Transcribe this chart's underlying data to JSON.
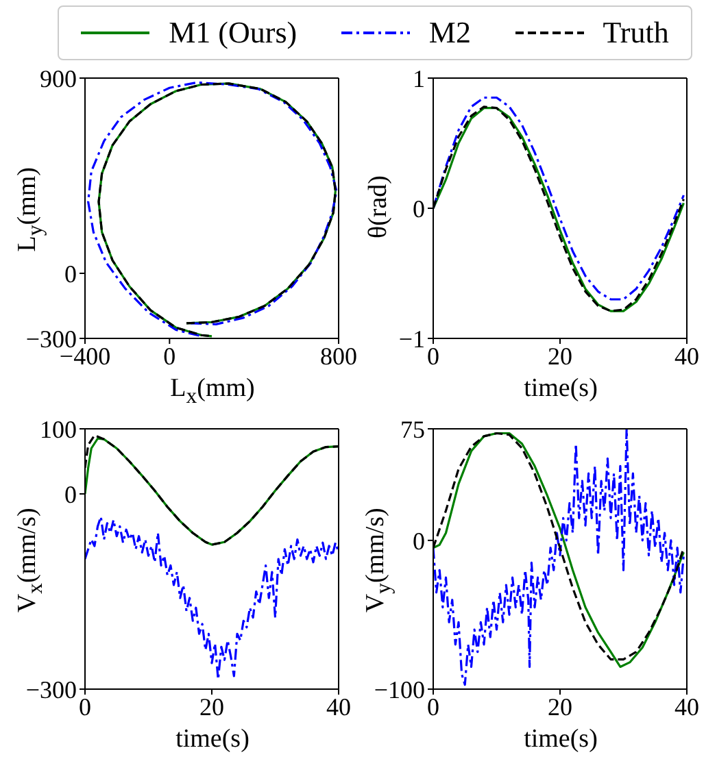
{
  "chart_data": [
    {
      "type": "line",
      "xlabel": "L$_{x}$(mm)",
      "ylabel": "L$_{y}$(mm)",
      "xlim": [
        -400,
        800
      ],
      "xticks": [
        {
          "value": -400,
          "label": "−400"
        },
        0,
        800
      ],
      "ylim": [
        -300,
        900
      ],
      "yticks": [
        {
          "value": -300,
          "label": "−300"
        },
        0,
        900
      ],
      "legend": "top",
      "series": [
        {
          "name": "M1 (Ours)",
          "color": "#008000",
          "line_style": "solid",
          "x": [
            80,
            200,
            330,
            450,
            560,
            660,
            730,
            775,
            785,
            770,
            720,
            650,
            550,
            430,
            280,
            150,
            30,
            -90,
            -190,
            -270,
            -320,
            -335,
            -320,
            -270,
            -190,
            -90,
            30,
            150,
            200
          ],
          "values": [
            -230,
            -225,
            -200,
            -150,
            -70,
            40,
            160,
            280,
            380,
            490,
            600,
            700,
            790,
            850,
            875,
            870,
            840,
            780,
            700,
            590,
            460,
            330,
            190,
            60,
            -60,
            -170,
            -250,
            -285,
            -290
          ]
        },
        {
          "name": "M2",
          "color": "#0000ff",
          "line_style": "dashdot",
          "x": [
            100,
            220,
            350,
            470,
            580,
            670,
            730,
            770,
            790,
            760,
            710,
            630,
            540,
            420,
            280,
            130,
            0,
            -120,
            -230,
            -310,
            -370,
            -385,
            -360,
            -300,
            -210,
            -100,
            30,
            150
          ],
          "values": [
            -230,
            -235,
            -205,
            -150,
            -60,
            50,
            170,
            280,
            380,
            490,
            600,
            710,
            790,
            850,
            870,
            880,
            855,
            800,
            720,
            610,
            470,
            330,
            190,
            50,
            -70,
            -180,
            -260,
            -290
          ]
        },
        {
          "name": "Truth",
          "color": "#000000",
          "line_style": "dashed",
          "x": [
            80,
            200,
            330,
            450,
            560,
            660,
            730,
            775,
            785,
            770,
            720,
            650,
            550,
            430,
            280,
            150,
            30,
            -90,
            -190,
            -270,
            -320,
            -335,
            -320,
            -270,
            -190,
            -90,
            30,
            150,
            200
          ],
          "values": [
            -230,
            -225,
            -200,
            -150,
            -70,
            40,
            160,
            280,
            380,
            490,
            600,
            700,
            790,
            850,
            875,
            870,
            840,
            780,
            700,
            590,
            460,
            330,
            190,
            60,
            -60,
            -170,
            -250,
            -285,
            -290
          ]
        }
      ]
    },
    {
      "type": "line",
      "xlabel": "time(s)",
      "ylabel": "θ(rad)",
      "xlim": [
        0,
        40
      ],
      "xticks": [
        0,
        20,
        40
      ],
      "ylim": [
        -1,
        1
      ],
      "yticks": [
        {
          "value": -1,
          "label": "−1"
        },
        0,
        1
      ],
      "series": [
        {
          "color": "#008000",
          "line_style": "solid",
          "x": [
            0,
            2,
            4,
            6,
            8,
            10,
            12,
            14,
            16,
            18,
            20,
            22,
            24,
            26,
            28,
            30,
            32,
            34,
            36,
            38,
            39.5
          ],
          "values": [
            0,
            0.22,
            0.5,
            0.69,
            0.77,
            0.77,
            0.7,
            0.55,
            0.34,
            0.1,
            -0.17,
            -0.42,
            -0.62,
            -0.74,
            -0.79,
            -0.79,
            -0.72,
            -0.58,
            -0.39,
            -0.15,
            0.04
          ]
        },
        {
          "color": "#0000ff",
          "line_style": "dashdot",
          "x": [
            0,
            2,
            4,
            6,
            8,
            10,
            12,
            14,
            16,
            18,
            20,
            22,
            24,
            26,
            28,
            30,
            32,
            34,
            36,
            38,
            39.5
          ],
          "values": [
            0,
            0.32,
            0.6,
            0.78,
            0.85,
            0.85,
            0.78,
            0.64,
            0.43,
            0.18,
            -0.08,
            -0.33,
            -0.52,
            -0.64,
            -0.7,
            -0.7,
            -0.62,
            -0.48,
            -0.3,
            -0.08,
            0.1
          ]
        },
        {
          "color": "#000000",
          "line_style": "dashed",
          "x": [
            0,
            2,
            4,
            6,
            8,
            10,
            12,
            14,
            16,
            18,
            20,
            22,
            24,
            26,
            28,
            30,
            32,
            34,
            36,
            38,
            39.5
          ],
          "values": [
            0,
            0.3,
            0.55,
            0.71,
            0.78,
            0.77,
            0.68,
            0.52,
            0.3,
            0.05,
            -0.22,
            -0.46,
            -0.64,
            -0.75,
            -0.79,
            -0.78,
            -0.7,
            -0.55,
            -0.35,
            -0.12,
            0.07
          ]
        }
      ]
    },
    {
      "type": "line",
      "xlabel": "time(s)",
      "ylabel": "V$_{x}$(mm/s)",
      "xlim": [
        0,
        40
      ],
      "xticks": [
        0,
        20,
        40
      ],
      "ylim": [
        -300,
        100
      ],
      "yticks": [
        {
          "value": -300,
          "label": "−300"
        },
        0,
        100
      ],
      "series": [
        {
          "color": "#008000",
          "line_style": "solid",
          "x": [
            0,
            0.5,
            1,
            2,
            3,
            5,
            7,
            9,
            11,
            13,
            15,
            17,
            19,
            20,
            22,
            24,
            26,
            28,
            30,
            32,
            34,
            36,
            38,
            40
          ],
          "values": [
            0,
            40,
            70,
            85,
            84,
            70,
            50,
            28,
            5,
            -20,
            -42,
            -60,
            -74,
            -78,
            -74,
            -60,
            -42,
            -20,
            5,
            28,
            50,
            65,
            72,
            73
          ]
        },
        {
          "color": "#0000ff",
          "line_style": "dashdot",
          "x": [
            0,
            0.5,
            1,
            1.5,
            2,
            2.5,
            3,
            3.5,
            4,
            4.5,
            5,
            5.5,
            6,
            6.5,
            7,
            7.5,
            8,
            8.5,
            9,
            9.5,
            10,
            10.5,
            11,
            11.5,
            12,
            12.5,
            13,
            13.5,
            14,
            14.5,
            15,
            15.5,
            16,
            16.5,
            17,
            17.5,
            18,
            18.5,
            19,
            19.5,
            20,
            20.5,
            21,
            21.5,
            22,
            22.5,
            23,
            23.5,
            24,
            24.5,
            25,
            25.5,
            26,
            26.5,
            27,
            27.5,
            28,
            28.5,
            29,
            29.5,
            30,
            30.5,
            31,
            31.5,
            32,
            32.5,
            33,
            33.5,
            34,
            34.5,
            35,
            35.5,
            36,
            36.5,
            37,
            37.5,
            38,
            38.5,
            39,
            39.5,
            40
          ],
          "values": [
            -100,
            -85,
            -70,
            -80,
            -50,
            -35,
            -70,
            -45,
            -60,
            -40,
            -65,
            -50,
            -75,
            -55,
            -70,
            -60,
            -85,
            -65,
            -90,
            -70,
            -95,
            -80,
            -105,
            -60,
            -110,
            -95,
            -125,
            -110,
            -140,
            -120,
            -160,
            -140,
            -180,
            -160,
            -195,
            -175,
            -215,
            -200,
            -240,
            -215,
            -260,
            -230,
            -285,
            -235,
            -255,
            -225,
            -250,
            -280,
            -215,
            -225,
            -195,
            -205,
            -175,
            -190,
            -150,
            -170,
            -140,
            -110,
            -160,
            -120,
            -190,
            -100,
            -125,
            -85,
            -110,
            -80,
            -100,
            -70,
            -95,
            -80,
            -100,
            -85,
            -105,
            -80,
            -95,
            -75,
            -100,
            -80,
            -95,
            -75,
            -90
          ]
        },
        {
          "color": "#000000",
          "line_style": "dashed",
          "x": [
            0,
            0.5,
            1.5,
            3,
            5,
            7,
            9,
            11,
            13,
            15,
            17,
            19,
            20,
            22,
            24,
            26,
            28,
            30,
            32,
            34,
            36,
            38,
            40
          ],
          "values": [
            40,
            75,
            90,
            84,
            70,
            50,
            28,
            5,
            -20,
            -42,
            -60,
            -74,
            -78,
            -74,
            -60,
            -42,
            -20,
            5,
            28,
            50,
            65,
            72,
            73
          ]
        }
      ]
    },
    {
      "type": "line",
      "xlabel": "time(s)",
      "ylabel": "V$_{y}$(mm/s)",
      "xlim": [
        0,
        40
      ],
      "xticks": [
        0,
        20,
        40
      ],
      "ylim": [
        -100,
        75
      ],
      "yticks": [
        {
          "value": -100,
          "label": "−100"
        },
        0,
        75
      ],
      "series": [
        {
          "color": "#008000",
          "line_style": "solid",
          "x": [
            0,
            1,
            2,
            4,
            6,
            8,
            10,
            12,
            14,
            16,
            18,
            20,
            22,
            24,
            26,
            28,
            29.5,
            31,
            33,
            35,
            37,
            39.5
          ],
          "values": [
            -5,
            -3,
            5,
            38,
            60,
            70,
            72,
            72,
            65,
            50,
            30,
            8,
            -20,
            -45,
            -62,
            -75,
            -85,
            -82,
            -72,
            -55,
            -35,
            -8
          ]
        },
        {
          "color": "#0000ff",
          "line_style": "dashdot",
          "x": [
            0,
            0.5,
            1,
            1.5,
            2,
            2.5,
            3,
            3.5,
            4,
            4.5,
            5,
            5.5,
            6,
            6.5,
            7,
            7.5,
            8,
            8.5,
            9,
            9.5,
            10,
            10.5,
            11,
            11.5,
            12,
            12.5,
            13,
            13.5,
            14,
            14.5,
            15,
            15.2,
            15.5,
            16,
            16.5,
            17,
            17.5,
            18,
            18.5,
            19,
            19.5,
            20,
            20.5,
            21,
            21.5,
            22,
            22.5,
            23,
            23.5,
            24,
            24.5,
            25,
            25.5,
            26,
            26.5,
            27,
            27.5,
            28,
            28.5,
            29,
            29.5,
            30,
            30.5,
            31,
            31.5,
            32,
            32.5,
            33,
            33.5,
            34,
            34.5,
            35,
            35.5,
            36,
            36.5,
            37,
            37.5,
            38,
            38.5,
            39,
            39.5
          ],
          "values": [
            -5,
            -35,
            -20,
            -45,
            -25,
            -55,
            -40,
            -70,
            -55,
            -90,
            -97,
            -70,
            -85,
            -60,
            -75,
            -55,
            -70,
            -45,
            -65,
            -40,
            -60,
            -35,
            -55,
            -30,
            -50,
            -25,
            -45,
            -30,
            -50,
            -20,
            -40,
            -85,
            -15,
            -45,
            -25,
            -40,
            -20,
            -30,
            -5,
            -20,
            5,
            -10,
            15,
            0,
            25,
            5,
            65,
            15,
            40,
            10,
            45,
            15,
            50,
            -10,
            40,
            20,
            55,
            15,
            45,
            0,
            50,
            -20,
            75,
            10,
            45,
            5,
            30,
            0,
            25,
            -10,
            20,
            -5,
            15,
            -15,
            5,
            -20,
            0,
            -30,
            -5,
            -35,
            -10
          ]
        },
        {
          "color": "#000000",
          "line_style": "dashed",
          "x": [
            0,
            2,
            4,
            6,
            8,
            10,
            12,
            14,
            16,
            18,
            20,
            22,
            24,
            26,
            28,
            30,
            32,
            34,
            36,
            38,
            39.5
          ],
          "values": [
            -5,
            20,
            48,
            63,
            70,
            72,
            71,
            62,
            45,
            22,
            -5,
            -32,
            -55,
            -70,
            -80,
            -80,
            -75,
            -62,
            -45,
            -25,
            -5
          ]
        }
      ]
    }
  ]
}
